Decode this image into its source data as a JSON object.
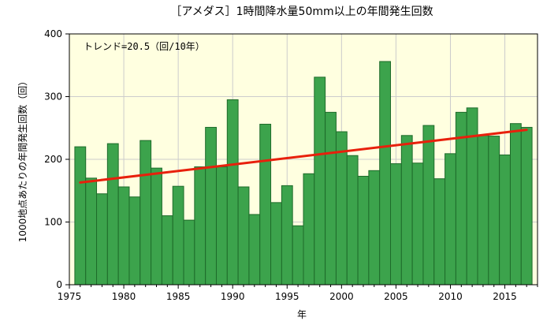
{
  "chart_data": {
    "type": "bar",
    "title": "［アメダス］1時間降水量50mm以上の年間発生回数",
    "xlabel": "年",
    "ylabel": "1000地点あたりの年間発生回数（回）",
    "annotation": "トレンド=20.5（回/10年）",
    "x": [
      1976,
      1977,
      1978,
      1979,
      1980,
      1981,
      1982,
      1983,
      1984,
      1985,
      1986,
      1987,
      1988,
      1989,
      1990,
      1991,
      1992,
      1993,
      1994,
      1995,
      1996,
      1997,
      1998,
      1999,
      2000,
      2001,
      2002,
      2003,
      2004,
      2005,
      2006,
      2007,
      2008,
      2009,
      2010,
      2011,
      2012,
      2013,
      2014,
      2015,
      2016,
      2017
    ],
    "values": [
      220,
      170,
      145,
      225,
      156,
      140,
      230,
      186,
      110,
      157,
      103,
      188,
      251,
      188,
      295,
      156,
      112,
      256,
      131,
      158,
      94,
      177,
      331,
      275,
      244,
      206,
      173,
      182,
      356,
      193,
      238,
      194,
      254,
      169,
      209,
      275,
      282,
      238,
      237,
      207,
      257,
      251
    ],
    "trend": {
      "x": [
        1976,
        2017
      ],
      "y": [
        163,
        247
      ]
    },
    "xlim": [
      1975,
      2018
    ],
    "ylim": [
      0,
      400
    ],
    "xticks": [
      1975,
      1980,
      1985,
      1990,
      1995,
      2000,
      2005,
      2010,
      2015
    ],
    "yticks": [
      0,
      100,
      200,
      300,
      400
    ],
    "grid": true,
    "colors": {
      "bar_fill": "#3ca34c",
      "bar_stroke": "#1e6b2a",
      "trend": "#e8200c",
      "plot_bg": "#ffffe0",
      "grid": "#cccccc"
    }
  }
}
